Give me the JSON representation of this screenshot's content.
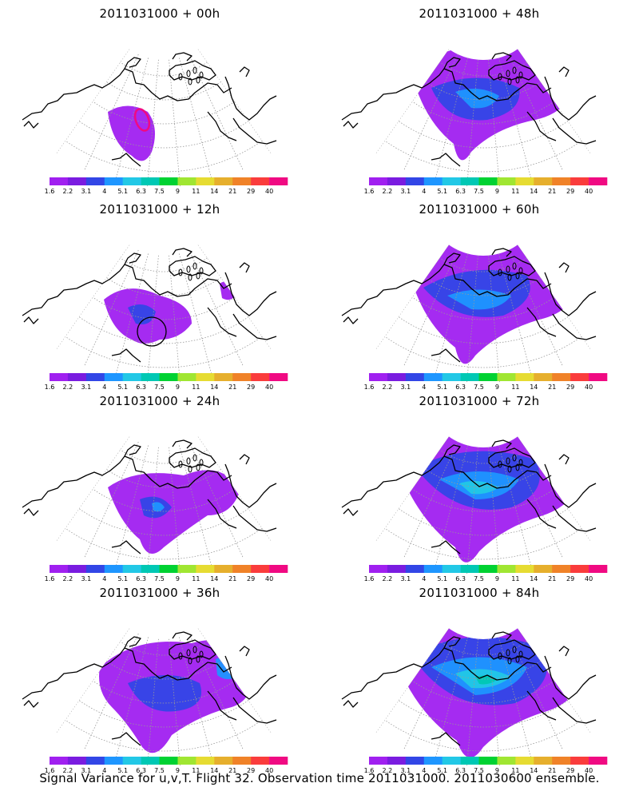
{
  "panels": [
    {
      "title": "2011031000 + 00h",
      "level": 0,
      "marker": "ellipse"
    },
    {
      "title": "2011031000 + 48h",
      "level": 4
    },
    {
      "title": "2011031000 + 12h",
      "level": 1,
      "marker": "circle"
    },
    {
      "title": "2011031000 + 60h",
      "level": 5
    },
    {
      "title": "2011031000 + 24h",
      "level": 2
    },
    {
      "title": "2011031000 + 72h",
      "level": 6
    },
    {
      "title": "2011031000 + 36h",
      "level": 3
    },
    {
      "title": "2011031000 + 84h",
      "level": 7
    }
  ],
  "colorbar": {
    "labels": [
      "1.6",
      "2.2",
      "3.1",
      "4",
      "5.1",
      "6.3",
      "7.5",
      "9",
      "11",
      "14",
      "21",
      "29",
      "40"
    ],
    "colors": [
      "#a020f0",
      "#7a1ce0",
      "#3246e6",
      "#1e96ff",
      "#22c8e6",
      "#00c8b4",
      "#00d232",
      "#a0e632",
      "#e6dc32",
      "#e6af2d",
      "#f08228",
      "#fa3c3c",
      "#f00a82"
    ]
  },
  "caption": "Signal Variance for u,v,T. Flight 32. Observation time 2011031000. 2011030600 ensemble."
}
